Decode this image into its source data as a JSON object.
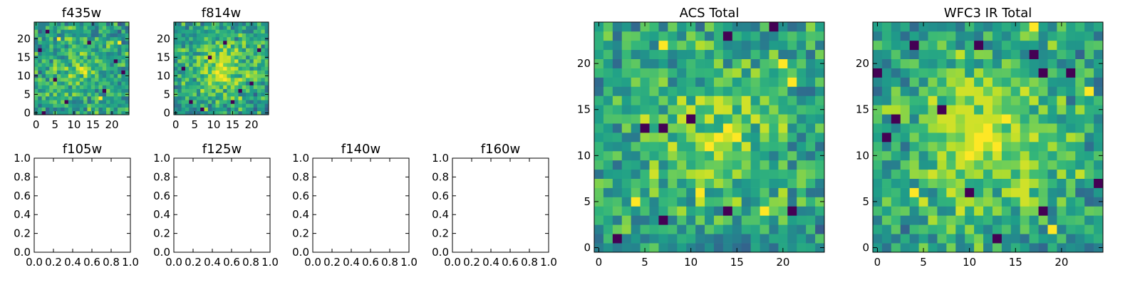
{
  "figure": {
    "colormap": "viridis",
    "colors": {
      "axes_edge": "#000000",
      "background": "#ffffff",
      "viridis_stops": [
        "#440154",
        "#482878",
        "#3e4989",
        "#31688e",
        "#26828e",
        "#1f9e89",
        "#35b779",
        "#6ece58",
        "#b5de2b",
        "#fde725"
      ]
    }
  },
  "chart_data": [
    {
      "id": "f435w",
      "type": "heatmap",
      "title": "f435w",
      "grid_size": 25,
      "xlim": [
        -0.5,
        24.5
      ],
      "ylim": [
        -0.5,
        24.5
      ],
      "x_ticks": [
        0,
        5,
        10,
        15,
        20
      ],
      "y_ticks": [
        0,
        5,
        10,
        15,
        20
      ],
      "x_tick_labels": [
        "0",
        "5",
        "10",
        "15",
        "20"
      ],
      "y_tick_labels": [
        "0",
        "5",
        "10",
        "15",
        "20"
      ],
      "value_range": [
        0,
        1
      ],
      "center_bright": 0.15,
      "seed": 11,
      "dark_pixels": [
        [
          2,
          0
        ],
        [
          5,
          9
        ],
        [
          3,
          22
        ],
        [
          21,
          14
        ],
        [
          8,
          3
        ],
        [
          14,
          19
        ],
        [
          1,
          17
        ],
        [
          18,
          6
        ],
        [
          23,
          11
        ]
      ],
      "yellow_pixels": [
        [
          12,
          12
        ],
        [
          13,
          11
        ],
        [
          6,
          20
        ],
        [
          17,
          4
        ],
        [
          22,
          19
        ]
      ]
    },
    {
      "id": "f814w",
      "type": "heatmap",
      "title": "f814w",
      "grid_size": 25,
      "xlim": [
        -0.5,
        24.5
      ],
      "ylim": [
        -0.5,
        24.5
      ],
      "x_ticks": [
        0,
        5,
        10,
        15,
        20
      ],
      "y_ticks": [
        0,
        5,
        10,
        15,
        20
      ],
      "x_tick_labels": [
        "0",
        "5",
        "10",
        "15",
        "20"
      ],
      "y_tick_labels": [
        "0",
        "5",
        "10",
        "15",
        "20"
      ],
      "value_range": [
        0,
        1
      ],
      "center_bright": 0.3,
      "seed": 23,
      "dark_pixels": [
        [
          4,
          3
        ],
        [
          17,
          6
        ],
        [
          9,
          15
        ],
        [
          13,
          19
        ],
        [
          2,
          12
        ],
        [
          20,
          8
        ],
        [
          7,
          1
        ],
        [
          22,
          17
        ],
        [
          15,
          3
        ]
      ],
      "yellow_pixels": [
        [
          12,
          13
        ],
        [
          13,
          12
        ],
        [
          11,
          11
        ],
        [
          12,
          10
        ],
        [
          13,
          9
        ]
      ]
    },
    {
      "id": "f105w",
      "type": "empty",
      "title": "f105w",
      "xlim": [
        0,
        1
      ],
      "ylim": [
        0,
        1
      ],
      "x_tick_labels": [
        "0.0",
        "0.2",
        "0.4",
        "0.6",
        "0.8",
        "1.0"
      ],
      "y_tick_labels": [
        "0.0",
        "0.2",
        "0.4",
        "0.6",
        "0.8",
        "1.0"
      ]
    },
    {
      "id": "f125w",
      "type": "empty",
      "title": "f125w",
      "xlim": [
        0,
        1
      ],
      "ylim": [
        0,
        1
      ],
      "x_tick_labels": [
        "0.0",
        "0.2",
        "0.4",
        "0.6",
        "0.8",
        "1.0"
      ],
      "y_tick_labels": [
        "0.0",
        "0.2",
        "0.4",
        "0.6",
        "0.8",
        "1.0"
      ]
    },
    {
      "id": "f140w",
      "type": "empty",
      "title": "f140w",
      "xlim": [
        0,
        1
      ],
      "ylim": [
        0,
        1
      ],
      "x_tick_labels": [
        "0.0",
        "0.2",
        "0.4",
        "0.6",
        "0.8",
        "1.0"
      ],
      "y_tick_labels": [
        "0.0",
        "0.2",
        "0.4",
        "0.6",
        "0.8",
        "1.0"
      ]
    },
    {
      "id": "f160w",
      "type": "empty",
      "title": "f160w",
      "xlim": [
        0,
        1
      ],
      "ylim": [
        0,
        1
      ],
      "x_tick_labels": [
        "0.0",
        "0.2",
        "0.4",
        "0.6",
        "0.8",
        "1.0"
      ],
      "y_tick_labels": [
        "0.0",
        "0.2",
        "0.4",
        "0.6",
        "0.8",
        "1.0"
      ]
    },
    {
      "id": "acs-total",
      "type": "heatmap",
      "title": "ACS Total",
      "grid_size": 25,
      "xlim": [
        -0.5,
        24.5
      ],
      "ylim": [
        -0.5,
        24.5
      ],
      "x_ticks": [
        0,
        5,
        10,
        15,
        20
      ],
      "y_ticks": [
        0,
        5,
        10,
        15,
        20
      ],
      "x_tick_labels": [
        "0",
        "5",
        "10",
        "15",
        "20"
      ],
      "y_tick_labels": [
        "0",
        "5",
        "10",
        "15",
        "20"
      ],
      "value_range": [
        0,
        1
      ],
      "center_bright": 0.25,
      "seed": 37,
      "dark_pixels": [
        [
          14,
          23
        ],
        [
          19,
          24
        ],
        [
          2,
          1
        ],
        [
          7,
          3
        ],
        [
          14,
          4
        ],
        [
          21,
          4
        ],
        [
          10,
          14
        ],
        [
          5,
          13
        ],
        [
          7,
          13
        ]
      ],
      "yellow_pixels": [
        [
          7,
          22
        ],
        [
          14,
          13
        ],
        [
          15,
          12
        ],
        [
          13,
          12
        ],
        [
          11,
          6
        ],
        [
          4,
          5
        ],
        [
          18,
          4
        ],
        [
          20,
          20
        ],
        [
          21,
          18
        ],
        [
          12,
          11
        ]
      ]
    },
    {
      "id": "wfc3-ir-total",
      "type": "heatmap",
      "title": "WFC3 IR Total",
      "grid_size": 25,
      "xlim": [
        -0.5,
        24.5
      ],
      "ylim": [
        -0.5,
        24.5
      ],
      "x_ticks": [
        0,
        5,
        10,
        15,
        20
      ],
      "y_ticks": [
        0,
        5,
        10,
        15,
        20
      ],
      "x_tick_labels": [
        "0",
        "5",
        "10",
        "15",
        "20"
      ],
      "y_tick_labels": [
        "0",
        "5",
        "10",
        "15",
        "20"
      ],
      "value_range": [
        0,
        1
      ],
      "center_bright": 0.35,
      "seed": 53,
      "dark_pixels": [
        [
          4,
          22
        ],
        [
          11,
          22
        ],
        [
          17,
          21
        ],
        [
          0,
          19
        ],
        [
          18,
          19
        ],
        [
          21,
          19
        ],
        [
          7,
          15
        ],
        [
          1,
          12
        ],
        [
          10,
          6
        ],
        [
          13,
          1
        ],
        [
          18,
          4
        ],
        [
          24,
          7
        ],
        [
          2,
          14
        ]
      ],
      "yellow_pixels": [
        [
          11,
          11
        ],
        [
          12,
          12
        ],
        [
          10,
          10
        ],
        [
          13,
          11
        ],
        [
          12,
          13
        ],
        [
          11,
          12
        ],
        [
          14,
          14
        ],
        [
          4,
          6
        ],
        [
          19,
          2
        ],
        [
          23,
          17
        ],
        [
          17,
          24
        ]
      ]
    }
  ]
}
